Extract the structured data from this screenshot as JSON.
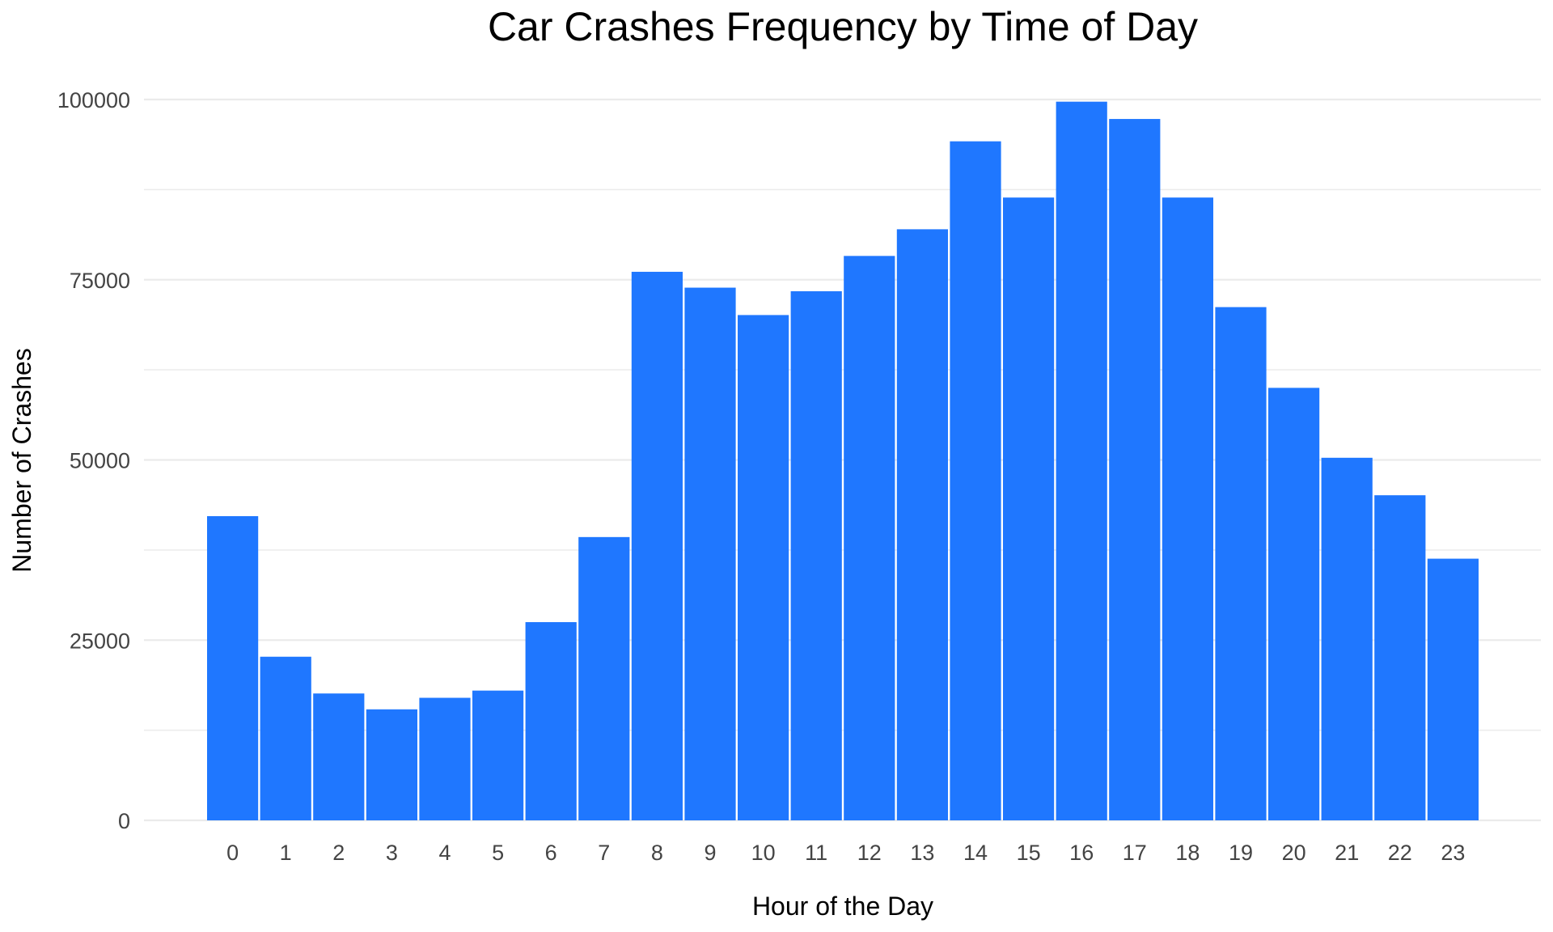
{
  "chart_data": {
    "type": "bar",
    "title": "Car Crashes Frequency by Time of Day",
    "xlabel": "Hour of the Day",
    "ylabel": "Number of Crashes",
    "categories": [
      "0",
      "1",
      "2",
      "3",
      "4",
      "5",
      "6",
      "7",
      "8",
      "9",
      "10",
      "11",
      "12",
      "13",
      "14",
      "15",
      "16",
      "17",
      "18",
      "19",
      "20",
      "21",
      "22",
      "23"
    ],
    "values": [
      42200,
      22700,
      17600,
      15400,
      17000,
      18000,
      27500,
      39300,
      76100,
      73900,
      70100,
      73400,
      78300,
      82000,
      94200,
      86400,
      99700,
      97300,
      86400,
      71200,
      60000,
      50300,
      45100,
      36300
    ],
    "ylim": [
      0,
      100000
    ],
    "yticks": [
      0,
      25000,
      50000,
      75000,
      100000
    ],
    "ytick_labels": [
      "0",
      "25000",
      "50000",
      "75000",
      "100000"
    ],
    "grid": true,
    "bar_color": "#1F77FF",
    "gridline_color": "#EBEBEB"
  }
}
